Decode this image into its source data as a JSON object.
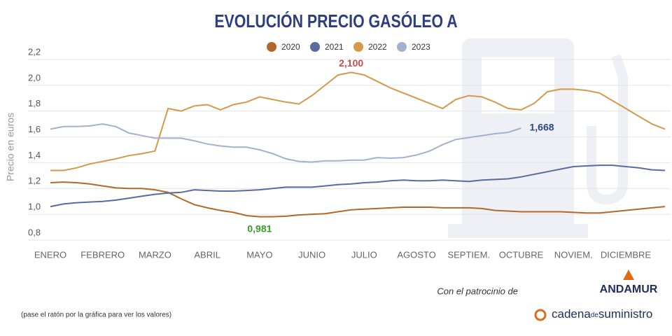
{
  "chart_data": {
    "type": "line",
    "title": "EVOLUCIÓN PRECIO GASÓLEO A",
    "y_label": "Precio en euros",
    "categories": [
      "ENERO",
      null,
      null,
      null,
      "FEBRERO",
      null,
      null,
      null,
      "MARZO",
      null,
      null,
      null,
      "ABRIL",
      null,
      null,
      null,
      "MAYO",
      null,
      null,
      null,
      "JUNIO",
      null,
      null,
      null,
      "JULIO",
      null,
      null,
      null,
      "AGOSTO",
      null,
      null,
      null,
      "SEPTIEM.",
      null,
      null,
      null,
      "OCTUBRE",
      null,
      null,
      null,
      "NOVIEM.",
      null,
      null,
      null,
      "DICIEMBRE",
      null,
      null,
      null
    ],
    "series": [
      {
        "name": "2020",
        "color": "#b0692a",
        "values": [
          1.245,
          1.25,
          1.245,
          1.235,
          1.22,
          1.205,
          1.2,
          1.2,
          1.19,
          1.17,
          1.12,
          1.075,
          1.05,
          1.03,
          1.015,
          0.99,
          0.981,
          0.981,
          0.985,
          0.995,
          1.0,
          1.005,
          1.02,
          1.035,
          1.04,
          1.045,
          1.05,
          1.055,
          1.055,
          1.055,
          1.05,
          1.05,
          1.05,
          1.045,
          1.03,
          1.025,
          1.02,
          1.02,
          1.02,
          1.02,
          1.015,
          1.01,
          1.01,
          1.02,
          1.03,
          1.04,
          1.05,
          1.06
        ]
      },
      {
        "name": "2021",
        "color": "#5b6aa0",
        "values": [
          1.06,
          1.08,
          1.09,
          1.095,
          1.1,
          1.11,
          1.125,
          1.14,
          1.155,
          1.165,
          1.17,
          1.19,
          1.185,
          1.18,
          1.18,
          1.185,
          1.19,
          1.2,
          1.21,
          1.21,
          1.21,
          1.22,
          1.23,
          1.235,
          1.245,
          1.25,
          1.26,
          1.265,
          1.26,
          1.26,
          1.265,
          1.26,
          1.255,
          1.265,
          1.27,
          1.275,
          1.29,
          1.31,
          1.33,
          1.35,
          1.37,
          1.375,
          1.38,
          1.38,
          1.37,
          1.36,
          1.345,
          1.34
        ]
      },
      {
        "name": "2022",
        "color": "#d4994a",
        "values": [
          1.34,
          1.34,
          1.36,
          1.39,
          1.41,
          1.43,
          1.455,
          1.47,
          1.49,
          1.82,
          1.8,
          1.84,
          1.85,
          1.81,
          1.85,
          1.87,
          1.91,
          1.89,
          1.87,
          1.855,
          1.92,
          2.0,
          2.08,
          2.1,
          2.08,
          2.03,
          1.98,
          1.94,
          1.9,
          1.86,
          1.82,
          1.89,
          1.92,
          1.91,
          1.87,
          1.82,
          1.81,
          1.86,
          1.95,
          1.97,
          1.97,
          1.96,
          1.94,
          1.88,
          1.82,
          1.76,
          1.7,
          1.66
        ]
      },
      {
        "name": "2023",
        "color": "#a3b1d1",
        "values": [
          1.66,
          1.68,
          1.68,
          1.685,
          1.7,
          1.68,
          1.63,
          1.61,
          1.59,
          1.59,
          1.59,
          1.57,
          1.545,
          1.53,
          1.52,
          1.52,
          1.5,
          1.47,
          1.43,
          1.41,
          1.405,
          1.415,
          1.415,
          1.42,
          1.42,
          1.44,
          1.435,
          1.44,
          1.46,
          1.49,
          1.54,
          1.58,
          1.595,
          1.61,
          1.625,
          1.635,
          1.668,
          null,
          null,
          null,
          null,
          null,
          null,
          null,
          null,
          null,
          null,
          null
        ]
      }
    ],
    "ylim": [
      0.8,
      2.2
    ],
    "yticks": [
      {
        "value": 0.8,
        "label": "0,8"
      },
      {
        "value": 1.0,
        "label": "1,0"
      },
      {
        "value": 1.2,
        "label": "1,2"
      },
      {
        "value": 1.4,
        "label": "1,4"
      },
      {
        "value": 1.6,
        "label": "1,6"
      },
      {
        "value": 1.8,
        "label": "1,8"
      },
      {
        "value": 2.0,
        "label": "2,0"
      },
      {
        "value": 2.2,
        "label": "2,2"
      }
    ],
    "grid": true,
    "legend": "top",
    "annotations": [
      {
        "text": "2,100",
        "color": "#c0504d",
        "series": 2,
        "index": 23
      },
      {
        "text": "0,981",
        "color": "#3a9a2a",
        "series": 0,
        "index": 16
      },
      {
        "text": "1,668",
        "color": "#2c4a80",
        "series": 3,
        "index": 36
      }
    ]
  },
  "footer": {
    "sponsor": "Con el patrocinio de",
    "sponsor_brand": "ANDAMUR",
    "note": "(pase el ratón por la gráfica para ver los valores)",
    "brand_a": "cadena",
    "brand_b": "de",
    "brand_c": "suministro"
  }
}
